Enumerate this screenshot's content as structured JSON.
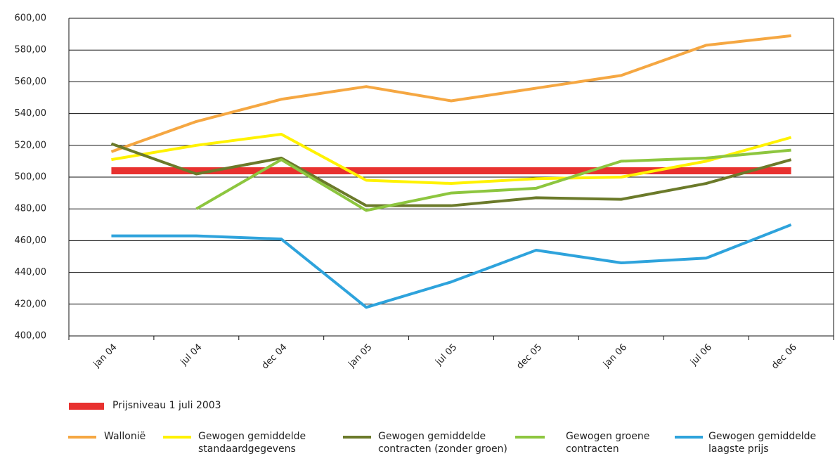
{
  "chart_data": {
    "type": "line",
    "categories": [
      "jan 04",
      "jul 04",
      "dec 04",
      "jan 05",
      "jul 05",
      "dec 05",
      "jan 06",
      "jul 06",
      "dec 06"
    ],
    "series": [
      {
        "name": "Prijsniveau 1 juli 2003",
        "color": "#e8312f",
        "values": [
          504,
          504,
          504,
          504,
          504,
          504,
          504,
          504,
          504
        ]
      },
      {
        "name": "Wallonië",
        "color": "#f5a742",
        "values": [
          516,
          535,
          549,
          557,
          548,
          556,
          564,
          583,
          589
        ]
      },
      {
        "name": "Gewogen gemiddelde standaardgegevens",
        "color": "#fff200",
        "values": [
          511,
          520,
          527,
          498,
          496,
          499,
          500,
          510,
          525
        ]
      },
      {
        "name": "Gewogen gemiddelde contracten (zonder groen)",
        "color": "#6b7a2a",
        "values": [
          521,
          502,
          512,
          482,
          482,
          487,
          486,
          496,
          511
        ]
      },
      {
        "name": "Gewogen groene contracten",
        "color": "#8dc63f",
        "values": [
          null,
          480,
          511,
          479,
          490,
          493,
          510,
          512,
          517
        ]
      },
      {
        "name": "Gewogen gemiddelde laagste prijs",
        "color": "#2ea3dc",
        "values": [
          463,
          463,
          461,
          418,
          434,
          454,
          446,
          449,
          470
        ]
      }
    ],
    "ylim": [
      400,
      600
    ],
    "yticks": [
      {
        "value": 400,
        "label": "400,00"
      },
      {
        "value": 420,
        "label": "420,00"
      },
      {
        "value": 440,
        "label": "440,00"
      },
      {
        "value": 460,
        "label": "460,00"
      },
      {
        "value": 480,
        "label": "480,00"
      },
      {
        "value": 500,
        "label": "500,00"
      },
      {
        "value": 520,
        "label": "520,00"
      },
      {
        "value": 540,
        "label": "540,00"
      },
      {
        "value": 560,
        "label": "560,00"
      },
      {
        "value": 580,
        "label": "580,00"
      },
      {
        "value": 600,
        "label": "600,00"
      }
    ],
    "grid": true
  }
}
